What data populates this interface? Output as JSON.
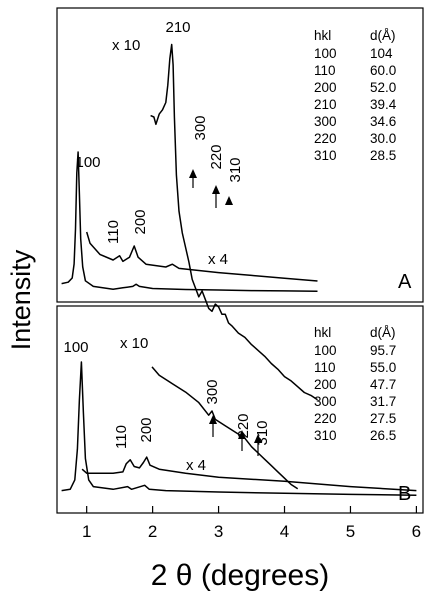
{
  "chart_data": {
    "type": "line",
    "xlabel": "2 θ (degrees)",
    "ylabel": "Intensity",
    "x_ticks": [
      "1",
      "2",
      "3",
      "4",
      "5",
      "6"
    ],
    "xlim": [
      0.55,
      6.1
    ],
    "panels": [
      {
        "panel_label": "A",
        "table_header": [
          "hkl",
          "d(Å)"
        ],
        "table": [
          [
            "100",
            "104"
          ],
          [
            "110",
            "60.0"
          ],
          [
            "200",
            "52.0"
          ],
          [
            "210",
            "39.4"
          ],
          [
            "300",
            "34.6"
          ],
          [
            "220",
            "30.0"
          ],
          [
            "310",
            "28.5"
          ]
        ],
        "peak_labels": [
          "100",
          "110",
          "200",
          "210",
          "300",
          "220",
          "310"
        ],
        "scale_labels": [
          "x 10",
          "x 4"
        ],
        "series": [
          {
            "values": [
              [
                0.62,
                0.06
              ],
              [
                0.72,
                0.07
              ],
              [
                0.78,
                0.1
              ],
              [
                0.81,
                0.2
              ],
              [
                0.83,
                0.45
              ],
              [
                0.85,
                0.85
              ],
              [
                0.87,
                1.0
              ],
              [
                0.89,
                0.7
              ],
              [
                0.91,
                0.38
              ],
              [
                0.94,
                0.18
              ],
              [
                0.98,
                0.08
              ],
              [
                1.1,
                0.04
              ],
              [
                1.4,
                0.02
              ],
              [
                1.55,
                0.03
              ],
              [
                1.7,
                0.04
              ],
              [
                1.75,
                0.055
              ],
              [
                1.8,
                0.04
              ],
              [
                2.0,
                0.025
              ],
              [
                2.5,
                0.018
              ],
              [
                3.0,
                0.014
              ],
              [
                3.5,
                0.01
              ],
              [
                4.0,
                0.008
              ],
              [
                4.5,
                0.006
              ]
            ]
          },
          {
            "values": [
              [
                1.0,
                0.4
              ],
              [
                1.05,
                0.32
              ],
              [
                1.2,
                0.24
              ],
              [
                1.4,
                0.2
              ],
              [
                1.5,
                0.23
              ],
              [
                1.55,
                0.19
              ],
              [
                1.65,
                0.22
              ],
              [
                1.72,
                0.3
              ],
              [
                1.78,
                0.22
              ],
              [
                1.9,
                0.17
              ],
              [
                2.2,
                0.15
              ],
              [
                2.3,
                0.17
              ],
              [
                2.4,
                0.14
              ],
              [
                3.0,
                0.11
              ],
              [
                3.5,
                0.09
              ],
              [
                4.0,
                0.07
              ],
              [
                4.5,
                0.05
              ]
            ]
          },
          {
            "values": [
              [
                1.97,
                2.01
              ],
              [
                2.02,
                2.0
              ],
              [
                2.05,
                1.95
              ],
              [
                2.1,
                2.02
              ],
              [
                2.15,
                2.05
              ],
              [
                2.2,
                2.1
              ],
              [
                2.23,
                2.22
              ],
              [
                2.26,
                2.4
              ],
              [
                2.29,
                2.5
              ],
              [
                2.31,
                2.36
              ],
              [
                2.33,
                2.0
              ],
              [
                2.36,
                1.6
              ],
              [
                2.4,
                1.35
              ],
              [
                2.45,
                1.2
              ],
              [
                2.5,
                1.1
              ],
              [
                2.55,
                1.0
              ],
              [
                2.6,
                0.88
              ],
              [
                2.65,
                0.82
              ],
              [
                2.7,
                0.76
              ],
              [
                2.75,
                0.8
              ],
              [
                2.8,
                0.74
              ],
              [
                2.85,
                0.68
              ],
              [
                2.9,
                0.66
              ],
              [
                2.95,
                0.71
              ],
              [
                3.0,
                0.69
              ],
              [
                3.05,
                0.64
              ],
              [
                3.1,
                0.64
              ],
              [
                3.15,
                0.58
              ],
              [
                3.2,
                0.56
              ],
              [
                3.3,
                0.51
              ],
              [
                3.4,
                0.48
              ],
              [
                3.5,
                0.43
              ],
              [
                3.6,
                0.39
              ],
              [
                3.7,
                0.35
              ],
              [
                3.8,
                0.3
              ],
              [
                3.9,
                0.26
              ],
              [
                4.0,
                0.21
              ],
              [
                4.1,
                0.18
              ],
              [
                4.2,
                0.14
              ],
              [
                4.3,
                0.1
              ],
              [
                4.4,
                0.08
              ],
              [
                4.5,
                0.05
              ]
            ]
          }
        ]
      },
      {
        "panel_label": "B",
        "table_header": [
          "hkl",
          "d(Å)"
        ],
        "table": [
          [
            "100",
            "95.7"
          ],
          [
            "110",
            "55.0"
          ],
          [
            "200",
            "47.7"
          ],
          [
            "300",
            "31.7"
          ],
          [
            "220",
            "27.5"
          ],
          [
            "310",
            "26.5"
          ]
        ],
        "peak_labels": [
          "100",
          "110",
          "200",
          "300",
          "220",
          "310"
        ],
        "scale_labels": [
          "x 10",
          "x 4"
        ],
        "series": [
          {
            "values": [
              [
                0.62,
                0.04
              ],
              [
                0.75,
                0.05
              ],
              [
                0.82,
                0.12
              ],
              [
                0.86,
                0.35
              ],
              [
                0.89,
                0.72
              ],
              [
                0.92,
                1.0
              ],
              [
                0.95,
                0.62
              ],
              [
                0.98,
                0.28
              ],
              [
                1.03,
                0.12
              ],
              [
                1.1,
                0.07
              ],
              [
                1.4,
                0.05
              ],
              [
                1.62,
                0.07
              ],
              [
                1.68,
                0.05
              ],
              [
                1.88,
                0.08
              ],
              [
                1.95,
                0.05
              ],
              [
                2.2,
                0.04
              ],
              [
                3.0,
                0.03
              ],
              [
                4.0,
                0.02
              ],
              [
                5.0,
                0.012
              ],
              [
                6.0,
                0.006
              ]
            ]
          },
          {
            "values": [
              [
                0.93,
                0.2
              ],
              [
                1.0,
                0.17
              ],
              [
                1.2,
                0.17
              ],
              [
                1.4,
                0.17
              ],
              [
                1.55,
                0.18
              ],
              [
                1.6,
                0.24
              ],
              [
                1.66,
                0.27
              ],
              [
                1.72,
                0.22
              ],
              [
                1.8,
                0.21
              ],
              [
                1.86,
                0.25
              ],
              [
                1.91,
                0.29
              ],
              [
                1.96,
                0.23
              ],
              [
                2.1,
                0.2
              ],
              [
                2.5,
                0.17
              ],
              [
                3.0,
                0.14
              ],
              [
                4.0,
                0.11
              ],
              [
                5.0,
                0.07
              ],
              [
                6.0,
                0.04
              ]
            ]
          },
          {
            "values": [
              [
                1.99,
                0.81
              ],
              [
                2.1,
                0.77
              ],
              [
                2.3,
                0.73
              ],
              [
                2.5,
                0.69
              ],
              [
                2.7,
                0.64
              ],
              [
                2.85,
                0.58
              ],
              [
                2.9,
                0.6
              ],
              [
                2.95,
                0.56
              ],
              [
                3.1,
                0.53
              ],
              [
                3.3,
                0.49
              ],
              [
                3.4,
                0.47
              ],
              [
                3.5,
                0.43
              ],
              [
                3.6,
                0.4
              ],
              [
                3.7,
                0.37
              ],
              [
                3.8,
                0.34
              ],
              [
                3.9,
                0.31
              ],
              [
                4.0,
                0.28
              ],
              [
                4.1,
                0.25
              ],
              [
                4.2,
                0.23
              ]
            ]
          }
        ]
      }
    ]
  }
}
